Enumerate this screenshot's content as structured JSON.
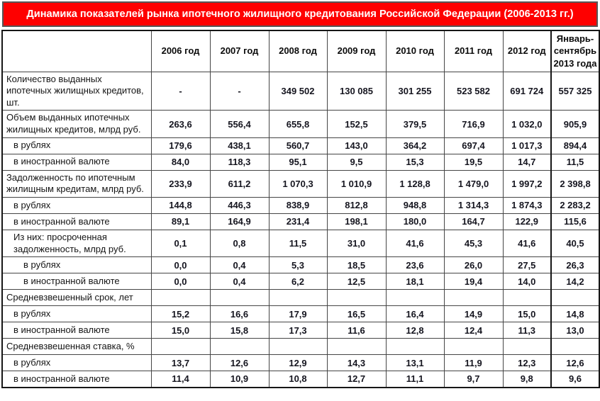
{
  "title": "Динамика показателей рынка ипотечного жилищного кредитования Российской Федерации (2006-2013 гг.)",
  "colors": {
    "title_bg": "#FE0000",
    "title_text": "#FFFFFF",
    "grid_border": "#454545",
    "outer_border": "#161616",
    "number_text": "#15151F"
  },
  "table": {
    "columns": [
      "2006 год",
      "2007 год",
      "2008 год",
      "2009 год",
      "2010 год",
      "2011 год",
      "2012 год",
      "Январь-сентябрь 2013 года"
    ],
    "rows": [
      {
        "label": "Количество выданных ипотечных жилищных кредитов, шт.",
        "indent": 0,
        "values": [
          "-",
          "-",
          "349 502",
          "130 085",
          "301 255",
          "523 582",
          "691 724",
          "557 325"
        ]
      },
      {
        "label": "Объем выданных ипотечных жилищных кредитов, млрд руб.",
        "indent": 0,
        "values": [
          "263,6",
          "556,4",
          "655,8",
          "152,5",
          "379,5",
          "716,9",
          "1 032,0",
          "905,9"
        ]
      },
      {
        "label": "в рублях",
        "indent": 1,
        "values": [
          "179,6",
          "438,1",
          "560,7",
          "143,0",
          "364,2",
          "697,4",
          "1 017,3",
          "894,4"
        ]
      },
      {
        "label": "в иностранной валюте",
        "indent": 1,
        "values": [
          "84,0",
          "118,3",
          "95,1",
          "9,5",
          "15,3",
          "19,5",
          "14,7",
          "11,5"
        ]
      },
      {
        "label": "Задолженность по ипотечным жилищным кредитам, млрд руб.",
        "indent": 0,
        "values": [
          "233,9",
          "611,2",
          "1 070,3",
          "1 010,9",
          "1 128,8",
          "1 479,0",
          "1 997,2",
          "2 398,8"
        ]
      },
      {
        "label": "в рублях",
        "indent": 1,
        "values": [
          "144,8",
          "446,3",
          "838,9",
          "812,8",
          "948,8",
          "1 314,3",
          "1 874,3",
          "2 283,2"
        ]
      },
      {
        "label": "в иностранной валюте",
        "indent": 1,
        "values": [
          "89,1",
          "164,9",
          "231,4",
          "198,1",
          "180,0",
          "164,7",
          "122,9",
          "115,6"
        ]
      },
      {
        "label": "Из них: просроченная задолженность, млрд руб.",
        "indent": 1,
        "values": [
          "0,1",
          "0,8",
          "11,5",
          "31,0",
          "41,6",
          "45,3",
          "41,6",
          "40,5"
        ]
      },
      {
        "label": "в рублях",
        "indent": 2,
        "values": [
          "0,0",
          "0,4",
          "5,3",
          "18,5",
          "23,6",
          "26,0",
          "27,5",
          "26,3"
        ]
      },
      {
        "label": "в иностранной валюте",
        "indent": 2,
        "values": [
          "0,0",
          "0,4",
          "6,2",
          "12,5",
          "18,1",
          "19,4",
          "14,0",
          "14,2"
        ]
      },
      {
        "label": "Средневзвешенный срок, лет",
        "indent": 0,
        "values": [
          "",
          "",
          "",
          "",
          "",
          "",
          "",
          ""
        ]
      },
      {
        "label": "в рублях",
        "indent": 1,
        "values": [
          "15,2",
          "16,6",
          "17,9",
          "16,5",
          "16,4",
          "14,9",
          "15,0",
          "14,8"
        ]
      },
      {
        "label": "в иностранной валюте",
        "indent": 1,
        "values": [
          "15,0",
          "15,8",
          "17,3",
          "11,6",
          "12,8",
          "12,4",
          "11,3",
          "13,0"
        ]
      },
      {
        "label": "Средневзвешенная ставка, %",
        "indent": 0,
        "values": [
          "",
          "",
          "",
          "",
          "",
          "",
          "",
          ""
        ]
      },
      {
        "label": "в рублях",
        "indent": 1,
        "values": [
          "13,7",
          "12,6",
          "12,9",
          "14,3",
          "13,1",
          "11,9",
          "12,3",
          "12,6"
        ]
      },
      {
        "label": "в иностранной валюте",
        "indent": 1,
        "values": [
          "11,4",
          "10,9",
          "10,8",
          "12,7",
          "11,1",
          "9,7",
          "9,8",
          "9,6"
        ]
      }
    ]
  }
}
